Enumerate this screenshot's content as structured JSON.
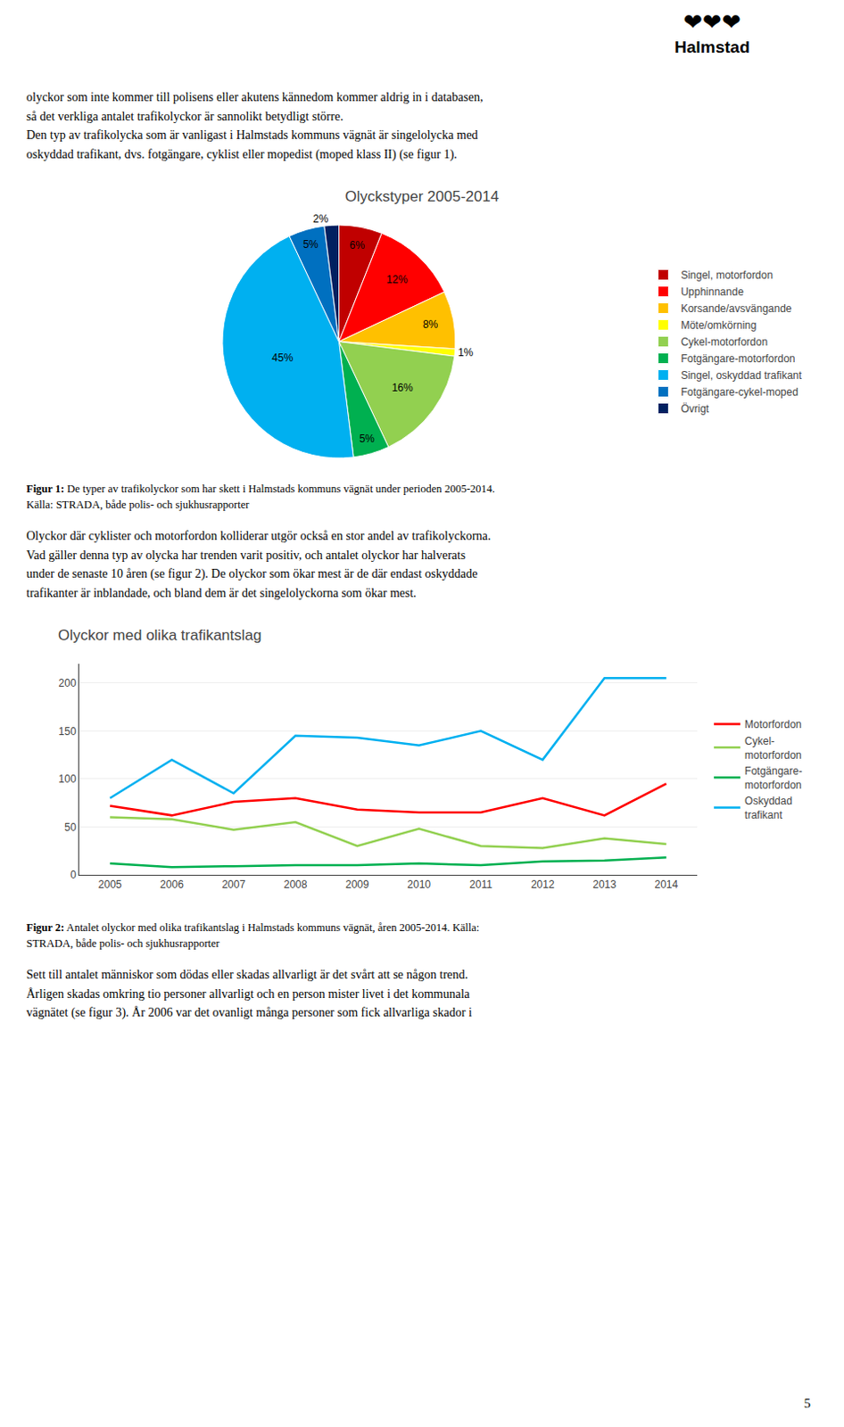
{
  "logo": [
    "❤❤❤",
    "Halmstad"
  ],
  "paragraphs": [
    "olyckor som inte kommer till polisens eller akutens kännedom kommer aldrig in i databasen,\nså det verkliga antalet trafikolyckor är sannolikt betydligt större.\nDen typ av trafikolycka som är vanligast i Halmstads kommuns vägnät är singelolycka med\noskyddad trafikant, dvs. fotgängare, cyklist eller mopedist (moped klass II) (se figur 1).",
    "Olyckor där cyklister och motorfordon kolliderar utgör också en stor andel av trafikolyckorna.\nVad gäller denna typ av olycka har trenden varit positiv, och antalet olyckor har halverats\nunder de senaste 10 åren (se figur 2). De olyckor som ökar mest är de där endast oskyddade\ntrafikanter är inblandade, och bland dem är det singelolyckorna som ökar mest.",
    "Sett till antalet människor som dödas eller skadas allvarligt är det svårt att se någon trend.\nÅrligen skadas omkring tio personer allvarligt och en person mister livet i det kommunala\nvägnätet (se figur 3). År 2006 var det ovanligt många personer som fick allvarliga skador i"
  ],
  "chart_data": [
    {
      "type": "pie",
      "title": "Olyckstyper 2005-2014",
      "categories": [
        "Singel, motorfordon",
        "Upphinnande",
        "Korsande/avsvängande",
        "Möte/omkörning",
        "Cykel-motorfordon",
        "Fotgängare-motorfordon",
        "Singel, oskyddad trafikant",
        "Fotgängare-cykel-moped",
        "Övrigt"
      ],
      "values": [
        6,
        12,
        8,
        1,
        16,
        5,
        45,
        5,
        2
      ],
      "value_labels": [
        "6%",
        "12%",
        "8%",
        "1%",
        "16%",
        "5%",
        "45%",
        "5%",
        "2%"
      ],
      "colors": [
        "#C00000",
        "#FF0000",
        "#FFC000",
        "#FFFF00",
        "#92D050",
        "#00B050",
        "#00B0F0",
        "#0070C0",
        "#002060"
      ],
      "data_labels": true,
      "legend": "right",
      "caption_label": "Figur 1:",
      "caption": " De typer av trafikolyckor som har skett i Halmstads kommuns vägnät under perioden 2005-2014.\nKälla: STRADA, både polis- och sjukhusrapporter"
    },
    {
      "type": "line",
      "title": "Olyckor med olika trafikantslag",
      "x": [
        2005,
        2006,
        2007,
        2008,
        2009,
        2010,
        2011,
        2012,
        2013,
        2014
      ],
      "series": [
        {
          "name": "Motorfordon",
          "color": "#FF0000",
          "values": [
            72,
            62,
            76,
            80,
            68,
            65,
            65,
            80,
            62,
            95
          ]
        },
        {
          "name": "Cykel-\nmotorfordon",
          "color": "#92D050",
          "values": [
            60,
            58,
            47,
            55,
            30,
            48,
            30,
            28,
            38,
            32
          ]
        },
        {
          "name": "Fotgängare-\nmotorfordon",
          "color": "#00B050",
          "values": [
            12,
            8,
            9,
            10,
            10,
            12,
            10,
            14,
            15,
            18
          ]
        },
        {
          "name": "Oskyddad\ntrafikant",
          "color": "#00B0F0",
          "values": [
            80,
            120,
            85,
            145,
            143,
            135,
            150,
            120,
            205,
            205
          ]
        }
      ],
      "xlim": [
        2004.5,
        2014.5
      ],
      "xticks": [
        2005,
        2006,
        2007,
        2008,
        2009,
        2010,
        2011,
        2012,
        2013,
        2014
      ],
      "ylim": [
        0,
        220
      ],
      "yticks": [
        0,
        50,
        100,
        150,
        200
      ],
      "grid": true,
      "legend": "right",
      "caption_label": "Figur 2:",
      "caption": " Antalet olyckor med olika trafikantslag i Halmstads kommuns vägnät, åren 2005-2014. Källa:\nSTRADA, både polis- och sjukhusrapporter"
    }
  ],
  "page_number": "5"
}
